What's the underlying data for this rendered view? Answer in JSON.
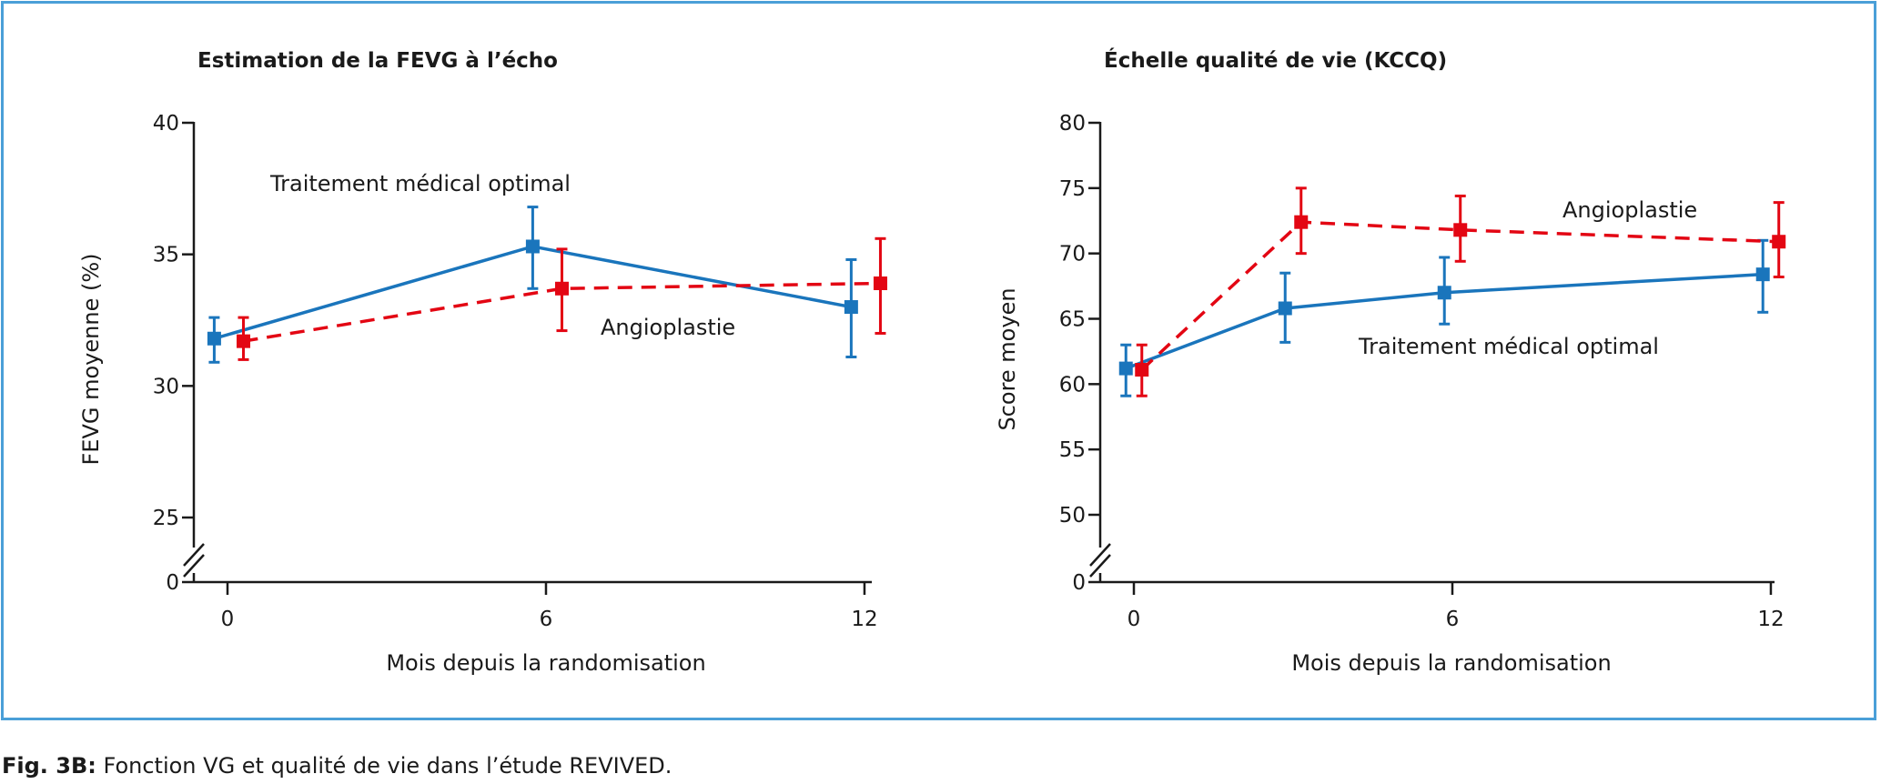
{
  "caption": {
    "label": "Fig. 3B:",
    "text": " Fonction VG et qualité de vie dans l’étude REVIVED."
  },
  "chart_data": [
    {
      "type": "line",
      "title": "Estimation de la FEVG à l’écho",
      "xlabel": "Mois depuis la randomisation",
      "ylabel": "FEVG moyenne (%)",
      "x_ticks": [
        0,
        6,
        12
      ],
      "y_ticks": [
        0,
        25,
        30,
        35,
        40
      ],
      "axis_break": true,
      "ylim": [
        25,
        40
      ],
      "grid": false,
      "legend": "none",
      "series": [
        {
          "name": "Traitement médical optimal",
          "color": "#1a75bc",
          "line_style": "solid",
          "marker": "square",
          "points": [
            {
              "x": -0.25,
              "y": 31.8,
              "err_low": 30.9,
              "err_high": 32.6
            },
            {
              "x": 5.75,
              "y": 35.3,
              "err_low": 33.7,
              "err_high": 36.8
            },
            {
              "x": 11.75,
              "y": 33.0,
              "err_low": 31.1,
              "err_high": 34.8
            }
          ]
        },
        {
          "name": "Angioplastie",
          "color": "#e30613",
          "line_style": "dashed",
          "marker": "square",
          "points": [
            {
              "x": 0.3,
              "y": 31.7,
              "err_low": 31.0,
              "err_high": 32.6
            },
            {
              "x": 6.3,
              "y": 33.7,
              "err_low": 32.1,
              "err_high": 35.2
            },
            {
              "x": 12.3,
              "y": 33.9,
              "err_low": 32.0,
              "err_high": 35.6
            }
          ]
        }
      ]
    },
    {
      "type": "line",
      "title": "Échelle qualité de vie (KCCQ)",
      "xlabel": "Mois depuis la randomisation",
      "ylabel": "Score moyen",
      "x_ticks": [
        0,
        6,
        12
      ],
      "y_ticks": [
        0,
        50,
        55,
        60,
        65,
        70,
        75,
        80
      ],
      "axis_break": true,
      "ylim": [
        50,
        80
      ],
      "grid": false,
      "legend": "none",
      "series": [
        {
          "name": "Traitement médical optimal",
          "color": "#1a75bc",
          "line_style": "solid",
          "marker": "square",
          "points": [
            {
              "x": -0.15,
              "y": 61.2,
              "err_low": 59.1,
              "err_high": 63.0
            },
            {
              "x": 2.85,
              "y": 65.8,
              "err_low": 63.2,
              "err_high": 68.5
            },
            {
              "x": 5.85,
              "y": 67.0,
              "err_low": 64.6,
              "err_high": 69.7
            },
            {
              "x": 11.85,
              "y": 68.4,
              "err_low": 65.5,
              "err_high": 71.0
            }
          ]
        },
        {
          "name": "Angioplastie",
          "color": "#e30613",
          "line_style": "dashed",
          "marker": "square",
          "points": [
            {
              "x": 0.15,
              "y": 61.1,
              "err_low": 59.1,
              "err_high": 63.0
            },
            {
              "x": 3.15,
              "y": 72.4,
              "err_low": 70.0,
              "err_high": 75.0
            },
            {
              "x": 6.15,
              "y": 71.8,
              "err_low": 69.4,
              "err_high": 74.4
            },
            {
              "x": 12.15,
              "y": 70.9,
              "err_low": 68.2,
              "err_high": 73.9
            }
          ]
        }
      ]
    }
  ]
}
